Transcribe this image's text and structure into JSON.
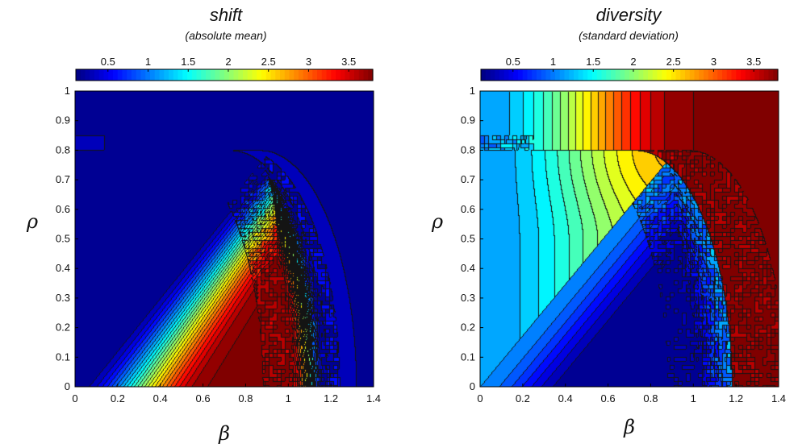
{
  "chart_data": [
    {
      "type": "heatmap",
      "title": "shift",
      "subtitle": "(absolute mean)",
      "xlabel": "β",
      "ylabel": "ρ",
      "xlim": [
        0,
        1.4
      ],
      "ylim": [
        0,
        1
      ],
      "xticks": [
        "0",
        "0.2",
        "0.4",
        "0.6",
        "0.8",
        "1",
        "1.2",
        "1.4"
      ],
      "yticks": [
        "0",
        "0.1",
        "0.2",
        "0.3",
        "0.4",
        "0.5",
        "0.6",
        "0.7",
        "0.8",
        "0.9",
        "1"
      ],
      "colorbar": {
        "range": [
          0.1,
          3.8
        ],
        "ticks": [
          "0.5",
          "1",
          "1.5",
          "2",
          "2.5",
          "3",
          "3.5"
        ]
      },
      "contours": true,
      "field": "shift"
    },
    {
      "type": "heatmap",
      "title": "diversity",
      "subtitle": "(standard deviation)",
      "xlabel": "β",
      "ylabel": "ρ",
      "xlim": [
        0,
        1.4
      ],
      "ylim": [
        0,
        1
      ],
      "xticks": [
        "0",
        "0.2",
        "0.4",
        "0.6",
        "0.8",
        "1",
        "1.2",
        "1.4"
      ],
      "yticks": [
        "0",
        "0.1",
        "0.2",
        "0.3",
        "0.4",
        "0.5",
        "0.6",
        "0.7",
        "0.8",
        "0.9",
        "1"
      ],
      "colorbar": {
        "range": [
          0.1,
          3.8
        ],
        "ticks": [
          "0.5",
          "1",
          "1.5",
          "2",
          "2.5",
          "3",
          "3.5"
        ]
      },
      "contours": true,
      "field": "diversity"
    }
  ]
}
